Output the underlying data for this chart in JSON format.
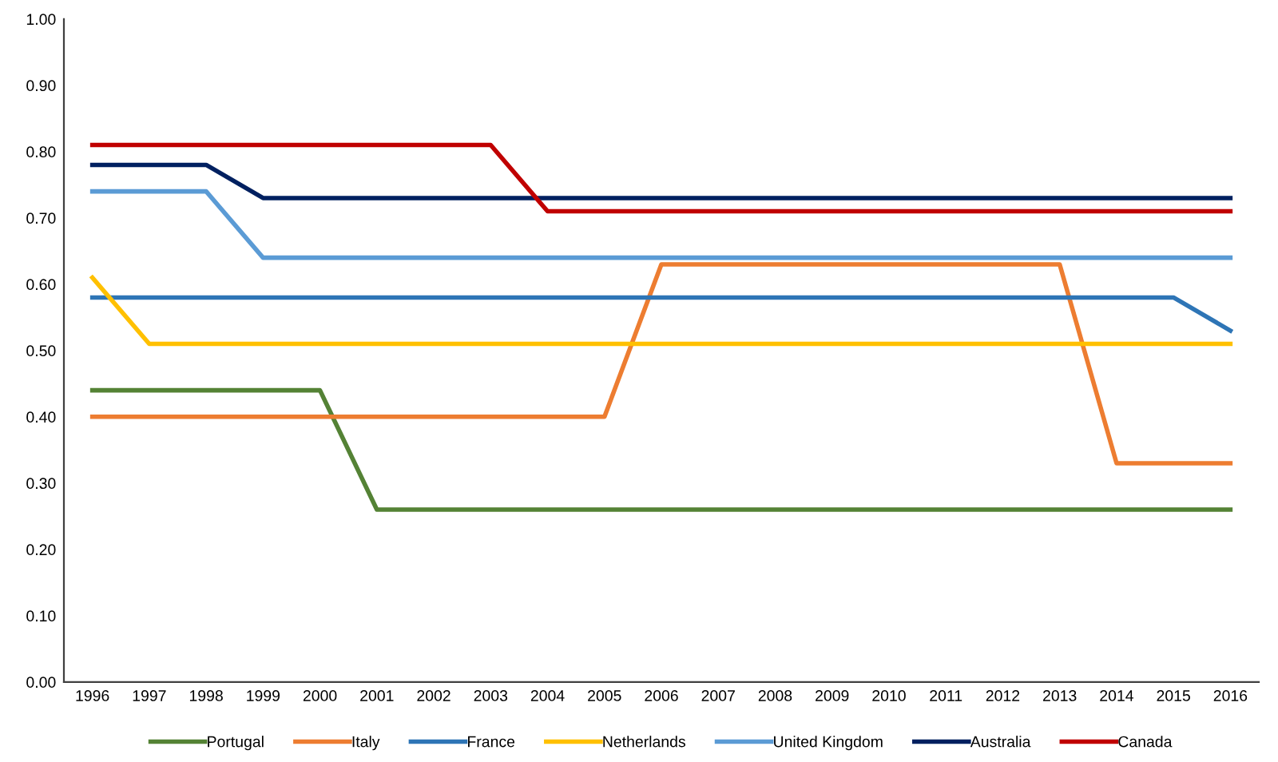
{
  "chart_data": {
    "type": "line",
    "categories": [
      "1996",
      "1997",
      "1998",
      "1999",
      "2000",
      "2001",
      "2002",
      "2003",
      "2004",
      "2005",
      "2006",
      "2007",
      "2008",
      "2009",
      "2010",
      "2011",
      "2012",
      "2013",
      "2014",
      "2015",
      "2016"
    ],
    "series": [
      {
        "name": "Portugal",
        "color": "#548235",
        "values": [
          0.44,
          0.44,
          0.44,
          0.44,
          0.44,
          0.26,
          0.26,
          0.26,
          0.26,
          0.26,
          0.26,
          0.26,
          0.26,
          0.26,
          0.26,
          0.26,
          0.26,
          0.26,
          0.26,
          0.26,
          0.26
        ]
      },
      {
        "name": "Italy",
        "color": "#ed7d31",
        "values": [
          0.4,
          0.4,
          0.4,
          0.4,
          0.4,
          0.4,
          0.4,
          0.4,
          0.4,
          0.4,
          0.63,
          0.63,
          0.63,
          0.63,
          0.63,
          0.63,
          0.63,
          0.63,
          0.33,
          0.33,
          0.33
        ]
      },
      {
        "name": "France",
        "color": "#2e75b6",
        "values": [
          0.58,
          0.58,
          0.58,
          0.58,
          0.58,
          0.58,
          0.58,
          0.58,
          0.58,
          0.58,
          0.58,
          0.58,
          0.58,
          0.58,
          0.58,
          0.58,
          0.58,
          0.58,
          0.58,
          0.58,
          0.53
        ]
      },
      {
        "name": "Netherlands",
        "color": "#ffc000",
        "values": [
          0.61,
          0.51,
          0.51,
          0.51,
          0.51,
          0.51,
          0.51,
          0.51,
          0.51,
          0.51,
          0.51,
          0.51,
          0.51,
          0.51,
          0.51,
          0.51,
          0.51,
          0.51,
          0.51,
          0.51,
          0.51
        ]
      },
      {
        "name": "United Kingdom",
        "color": "#5b9bd5",
        "values": [
          0.74,
          0.74,
          0.74,
          0.64,
          0.64,
          0.64,
          0.64,
          0.64,
          0.64,
          0.64,
          0.64,
          0.64,
          0.64,
          0.64,
          0.64,
          0.64,
          0.64,
          0.64,
          0.64,
          0.64,
          0.64
        ]
      },
      {
        "name": "Australia",
        "color": "#002060",
        "values": [
          0.78,
          0.78,
          0.78,
          0.73,
          0.73,
          0.73,
          0.73,
          0.73,
          0.73,
          0.73,
          0.73,
          0.73,
          0.73,
          0.73,
          0.73,
          0.73,
          0.73,
          0.73,
          0.73,
          0.73,
          0.73
        ]
      },
      {
        "name": "Canada",
        "color": "#c00000",
        "values": [
          0.81,
          0.81,
          0.81,
          0.81,
          0.81,
          0.81,
          0.81,
          0.81,
          0.71,
          0.71,
          0.71,
          0.71,
          0.71,
          0.71,
          0.71,
          0.71,
          0.71,
          0.71,
          0.71,
          0.71,
          0.71
        ]
      }
    ],
    "ylim": [
      0,
      1
    ],
    "yticks": [
      {
        "value": 0,
        "label": "0.00"
      },
      {
        "value": 0.1,
        "label": "0.10"
      },
      {
        "value": 0.2,
        "label": "0.20"
      },
      {
        "value": 0.3,
        "label": "0.30"
      },
      {
        "value": 0.4,
        "label": "0.40"
      },
      {
        "value": 0.5,
        "label": "0.50"
      },
      {
        "value": 0.6,
        "label": "0.60"
      },
      {
        "value": 0.7,
        "label": "0.70"
      },
      {
        "value": 0.8,
        "label": "0.80"
      },
      {
        "value": 0.9,
        "label": "0.90"
      },
      {
        "value": 1.0,
        "label": "1.00"
      }
    ],
    "grid": false,
    "legend": "bottom",
    "marker": "none",
    "line_style": "solid"
  }
}
